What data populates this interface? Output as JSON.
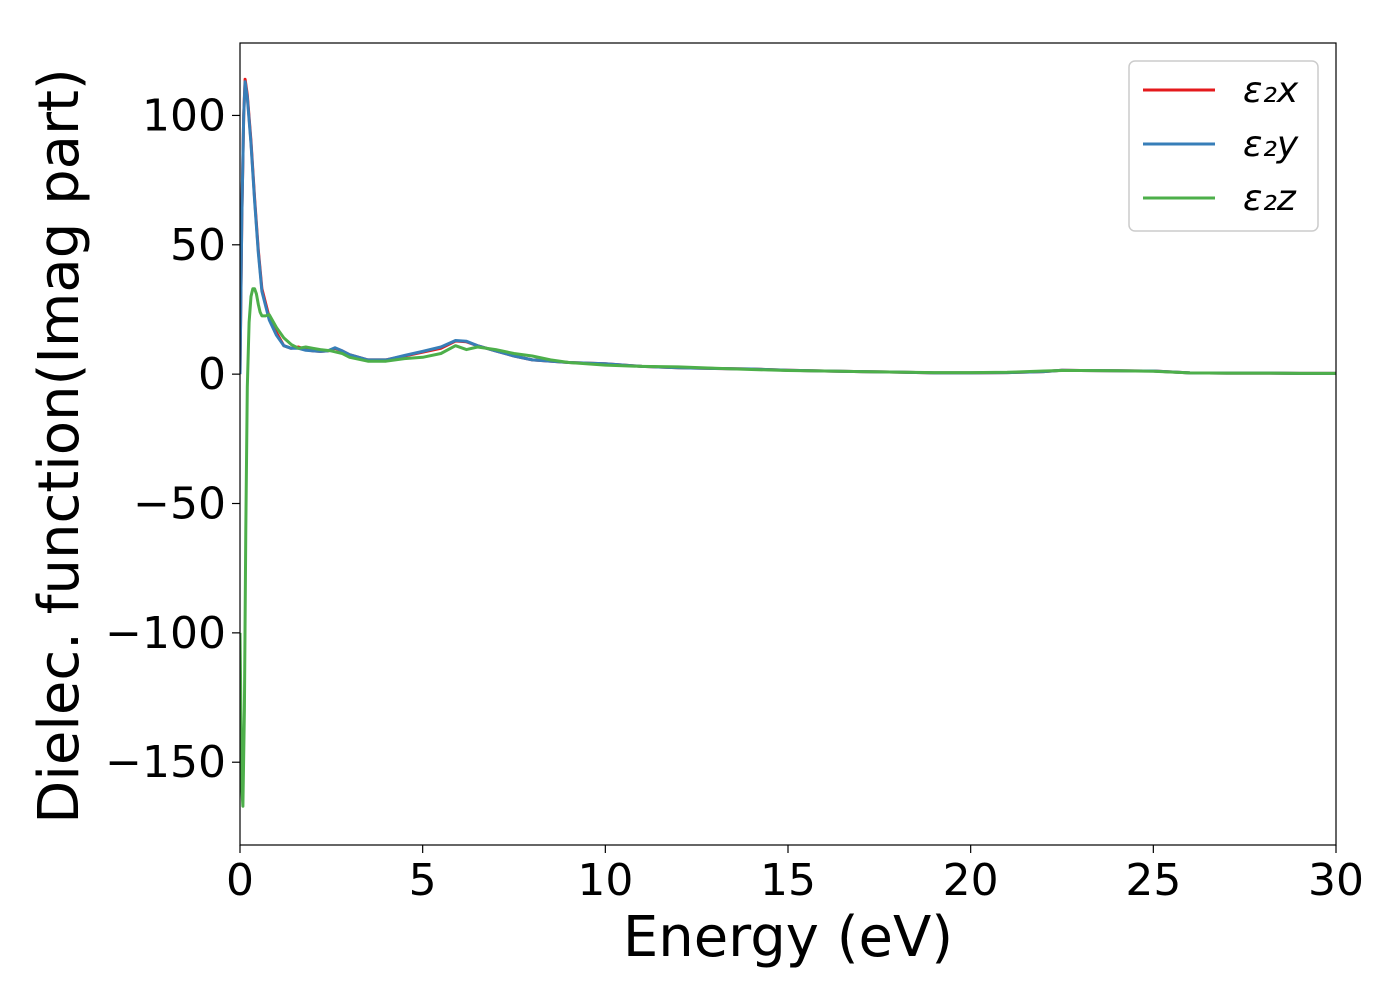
{
  "chart_data": {
    "type": "line",
    "title": "",
    "xlabel": "Energy (eV)",
    "ylabel": "Dielec. function(Imag part)",
    "xlim": [
      0,
      30
    ],
    "ylim": [
      -182,
      128
    ],
    "xticks": [
      0,
      5,
      10,
      15,
      20,
      25,
      30
    ],
    "yticks": [
      -150,
      -100,
      -50,
      0,
      50,
      100
    ],
    "grid": false,
    "legend_position": "upper right",
    "series": [
      {
        "name": "ε₂x",
        "color": "#e41a1c",
        "points": [
          [
            0.0,
            0
          ],
          [
            0.05,
            60
          ],
          [
            0.1,
            100
          ],
          [
            0.14,
            114
          ],
          [
            0.2,
            108
          ],
          [
            0.3,
            90
          ],
          [
            0.4,
            68
          ],
          [
            0.5,
            48
          ],
          [
            0.6,
            33
          ],
          [
            0.8,
            22
          ],
          [
            1.0,
            16
          ],
          [
            1.2,
            11
          ],
          [
            1.4,
            10
          ],
          [
            1.6,
            10.5
          ],
          [
            1.8,
            9.5
          ],
          [
            2.0,
            9
          ],
          [
            2.2,
            8.8
          ],
          [
            2.4,
            9
          ],
          [
            2.6,
            10
          ],
          [
            2.8,
            9
          ],
          [
            3.0,
            7.5
          ],
          [
            3.5,
            5.5
          ],
          [
            4.0,
            5.5
          ],
          [
            4.5,
            7
          ],
          [
            5.0,
            8.5
          ],
          [
            5.5,
            10
          ],
          [
            5.9,
            12.8
          ],
          [
            6.2,
            12.5
          ],
          [
            6.5,
            11
          ],
          [
            7.0,
            9
          ],
          [
            7.5,
            7
          ],
          [
            8.0,
            5.5
          ],
          [
            9.0,
            4.5
          ],
          [
            10.0,
            4
          ],
          [
            11.0,
            3
          ],
          [
            12.0,
            2.5
          ],
          [
            13.0,
            2.2
          ],
          [
            14.0,
            2
          ],
          [
            15.0,
            1.5
          ],
          [
            16.0,
            1.2
          ],
          [
            17.0,
            1
          ],
          [
            18.0,
            0.8
          ],
          [
            19.0,
            0.5
          ],
          [
            20.0,
            0.5
          ],
          [
            21.0,
            0.6
          ],
          [
            22.0,
            1
          ],
          [
            22.5,
            1.5
          ],
          [
            23.0,
            1.4
          ],
          [
            24.0,
            1.3
          ],
          [
            25.0,
            1.2
          ],
          [
            26.0,
            0.5
          ],
          [
            27.0,
            0.4
          ],
          [
            28.0,
            0.4
          ],
          [
            29.0,
            0.3
          ],
          [
            30.0,
            0.3
          ]
        ]
      },
      {
        "name": "ε₂y",
        "color": "#377eb8",
        "points": [
          [
            0.0,
            0
          ],
          [
            0.05,
            60
          ],
          [
            0.1,
            100
          ],
          [
            0.14,
            113
          ],
          [
            0.2,
            107
          ],
          [
            0.3,
            89
          ],
          [
            0.4,
            67
          ],
          [
            0.5,
            47
          ],
          [
            0.6,
            32
          ],
          [
            0.8,
            21
          ],
          [
            1.0,
            15
          ],
          [
            1.2,
            11
          ],
          [
            1.4,
            10
          ],
          [
            1.6,
            10
          ],
          [
            1.8,
            9.2
          ],
          [
            2.0,
            9
          ],
          [
            2.2,
            8.8
          ],
          [
            2.4,
            9
          ],
          [
            2.6,
            10.2
          ],
          [
            2.8,
            9
          ],
          [
            3.0,
            7.5
          ],
          [
            3.5,
            5.5
          ],
          [
            4.0,
            5.5
          ],
          [
            4.5,
            7.2
          ],
          [
            5.0,
            8.8
          ],
          [
            5.5,
            10.5
          ],
          [
            5.9,
            13
          ],
          [
            6.2,
            12.7
          ],
          [
            6.5,
            11
          ],
          [
            7.0,
            9
          ],
          [
            7.5,
            7
          ],
          [
            8.0,
            5.5
          ],
          [
            9.0,
            4.5
          ],
          [
            10.0,
            4
          ],
          [
            11.0,
            3
          ],
          [
            12.0,
            2.5
          ],
          [
            13.0,
            2.2
          ],
          [
            14.0,
            2
          ],
          [
            15.0,
            1.5
          ],
          [
            16.0,
            1.2
          ],
          [
            17.0,
            1
          ],
          [
            18.0,
            0.8
          ],
          [
            19.0,
            0.5
          ],
          [
            20.0,
            0.5
          ],
          [
            21.0,
            0.6
          ],
          [
            22.0,
            1
          ],
          [
            22.5,
            1.5
          ],
          [
            23.0,
            1.4
          ],
          [
            24.0,
            1.3
          ],
          [
            25.0,
            1.2
          ],
          [
            26.0,
            0.5
          ],
          [
            27.0,
            0.4
          ],
          [
            28.0,
            0.4
          ],
          [
            29.0,
            0.3
          ],
          [
            30.0,
            0.3
          ]
        ]
      },
      {
        "name": "ε₂z",
        "color": "#4daf4a",
        "points": [
          [
            0.0,
            -100
          ],
          [
            0.05,
            -160
          ],
          [
            0.08,
            -167
          ],
          [
            0.12,
            -130
          ],
          [
            0.16,
            -60
          ],
          [
            0.2,
            -5
          ],
          [
            0.25,
            20
          ],
          [
            0.3,
            30
          ],
          [
            0.35,
            33
          ],
          [
            0.4,
            33
          ],
          [
            0.45,
            31
          ],
          [
            0.5,
            27
          ],
          [
            0.55,
            24
          ],
          [
            0.6,
            22.5
          ],
          [
            0.7,
            22.5
          ],
          [
            0.8,
            23
          ],
          [
            1.0,
            18
          ],
          [
            1.2,
            14
          ],
          [
            1.4,
            11.5
          ],
          [
            1.6,
            10
          ],
          [
            1.8,
            10.5
          ],
          [
            2.0,
            10
          ],
          [
            2.2,
            9.5
          ],
          [
            2.5,
            9
          ],
          [
            2.8,
            8
          ],
          [
            3.0,
            6.5
          ],
          [
            3.5,
            5
          ],
          [
            4.0,
            5
          ],
          [
            4.5,
            6
          ],
          [
            5.0,
            6.5
          ],
          [
            5.5,
            8
          ],
          [
            5.9,
            11
          ],
          [
            6.2,
            9.5
          ],
          [
            6.5,
            10.5
          ],
          [
            7.0,
            9.5
          ],
          [
            7.5,
            8
          ],
          [
            8.0,
            7
          ],
          [
            8.5,
            5.5
          ],
          [
            9.0,
            4.5
          ],
          [
            10.0,
            3.5
          ],
          [
            11.0,
            3
          ],
          [
            12.0,
            2.8
          ],
          [
            13.0,
            2.3
          ],
          [
            14.0,
            1.8
          ],
          [
            15.0,
            1.4
          ],
          [
            16.0,
            1.2
          ],
          [
            17.0,
            1
          ],
          [
            18.0,
            0.8
          ],
          [
            19.0,
            0.6
          ],
          [
            20.0,
            0.6
          ],
          [
            21.0,
            0.7
          ],
          [
            22.0,
            1.2
          ],
          [
            22.5,
            1.4
          ],
          [
            23.0,
            1.4
          ],
          [
            24.0,
            1.3
          ],
          [
            25.0,
            1.1
          ],
          [
            26.0,
            0.5
          ],
          [
            27.0,
            0.4
          ],
          [
            28.0,
            0.4
          ],
          [
            29.0,
            0.3
          ],
          [
            30.0,
            0.3
          ]
        ]
      }
    ]
  }
}
